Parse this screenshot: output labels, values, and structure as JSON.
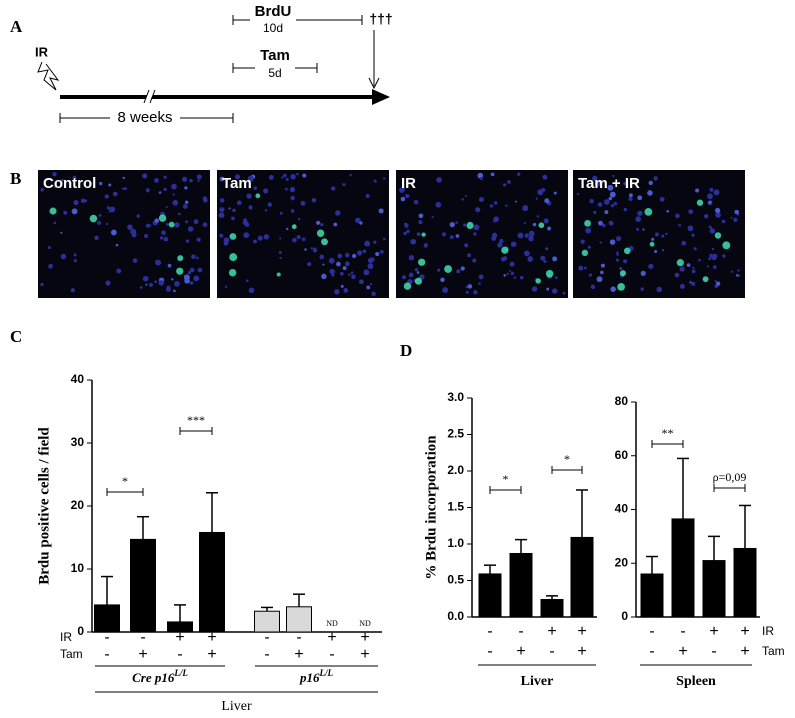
{
  "panel_labels": [
    "A",
    "B",
    "C",
    "D"
  ],
  "timeline": {
    "ir": "IR",
    "brdu": "BrdU",
    "brdu_duration": "10d",
    "sacrifice": "†††",
    "tam": "Tam",
    "tam_duration": "5d",
    "interval": "8 weeks"
  },
  "images": [
    "Control",
    "Tam",
    "IR",
    "Tam + IR"
  ],
  "chart_data": [
    {
      "type": "bar",
      "y_label": "Brdu positive cells / field",
      "values": [
        4.3,
        14.7,
        1.6,
        15.8,
        3.3,
        4.0,
        null,
        null
      ],
      "errors": [
        4.5,
        3.6,
        2.7,
        6.3,
        0.6,
        2.0,
        null,
        null
      ],
      "value_labels": [
        null,
        null,
        null,
        null,
        null,
        null,
        "ND",
        "ND"
      ],
      "colors": [
        "#000000",
        "#000000",
        "#000000",
        "#000000",
        "#d9d9d9",
        "#d9d9d9",
        "#d9d9d9",
        "#d9d9d9"
      ],
      "ylim": [
        0,
        40
      ],
      "yticks": [
        0,
        10,
        20,
        30,
        40
      ],
      "rows": [
        {
          "name": "IR",
          "signs": [
            "-",
            "-",
            "+",
            "+",
            "-",
            "-",
            "+",
            "+"
          ]
        },
        {
          "name": "Tam",
          "signs": [
            "-",
            "+",
            "-",
            "+",
            "-",
            "+",
            "-",
            "+"
          ]
        }
      ],
      "groups": [
        {
          "name": "Cre p16",
          "sup": "L/L"
        },
        {
          "name": "p16",
          "sup": "L/L"
        }
      ],
      "annotations": [
        "*",
        "***"
      ],
      "x_label": "Liver"
    },
    {
      "type": "bar",
      "y_label": "% Brdu incorporation",
      "values": [
        0.59,
        0.87,
        0.24,
        1.09
      ],
      "errors": [
        0.12,
        0.19,
        0.05,
        0.65
      ],
      "color": "#000000",
      "ylim": [
        0,
        3
      ],
      "yticks": [
        {
          "value": 0,
          "label": "0.0"
        },
        0.5,
        {
          "value": 1,
          "label": "1.0"
        },
        1.5,
        {
          "value": 2,
          "label": "2.0"
        },
        2.5,
        {
          "value": 3,
          "label": "3.0"
        }
      ],
      "rows": [
        {
          "signs": [
            "-",
            "-",
            "+",
            "+"
          ]
        },
        {
          "signs": [
            "-",
            "+",
            "-",
            "+"
          ]
        }
      ],
      "annotations": [
        "*",
        "*"
      ],
      "x_label": "Liver"
    },
    {
      "type": "bar",
      "values": [
        16,
        36.5,
        21,
        25.5
      ],
      "errors": [
        6.5,
        22.5,
        9,
        16
      ],
      "color": "#000000",
      "ylim": [
        0,
        80
      ],
      "yticks": [
        0,
        20,
        40,
        60,
        80
      ],
      "rows": [
        {
          "name": "IR",
          "signs": [
            "-",
            "-",
            "+",
            "+"
          ]
        },
        {
          "name": "Tam",
          "signs": [
            "-",
            "+",
            "-",
            "+"
          ]
        }
      ],
      "annotations": [
        "**",
        "ρ=0,09"
      ],
      "x_label": "Spleen"
    }
  ]
}
